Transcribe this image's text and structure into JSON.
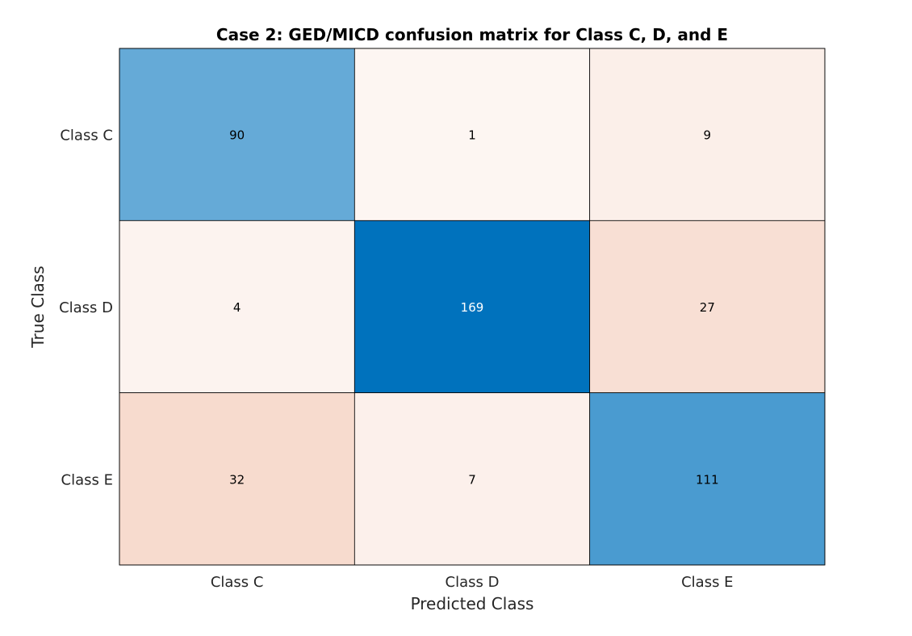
{
  "chart_data": {
    "type": "heatmap",
    "title": "Case 2: GED/MICD confusion matrix for Class C, D, and E",
    "xlabel": "Predicted Class",
    "ylabel": "True Class",
    "x_categories": [
      "Class C",
      "Class D",
      "Class E"
    ],
    "y_categories": [
      "Class C",
      "Class D",
      "Class E"
    ],
    "values": [
      [
        90,
        1,
        9
      ],
      [
        4,
        169,
        27
      ],
      [
        32,
        7,
        111
      ]
    ],
    "colors": {
      "diagonal_max": "#0072bd",
      "diagonal_min": "#ffffff",
      "off_diagonal_max": "#d95319",
      "off_diagonal_min": "#ffffff",
      "text_dark": "#000000",
      "text_light": "#ffffff",
      "grid_line": "#000000"
    }
  }
}
